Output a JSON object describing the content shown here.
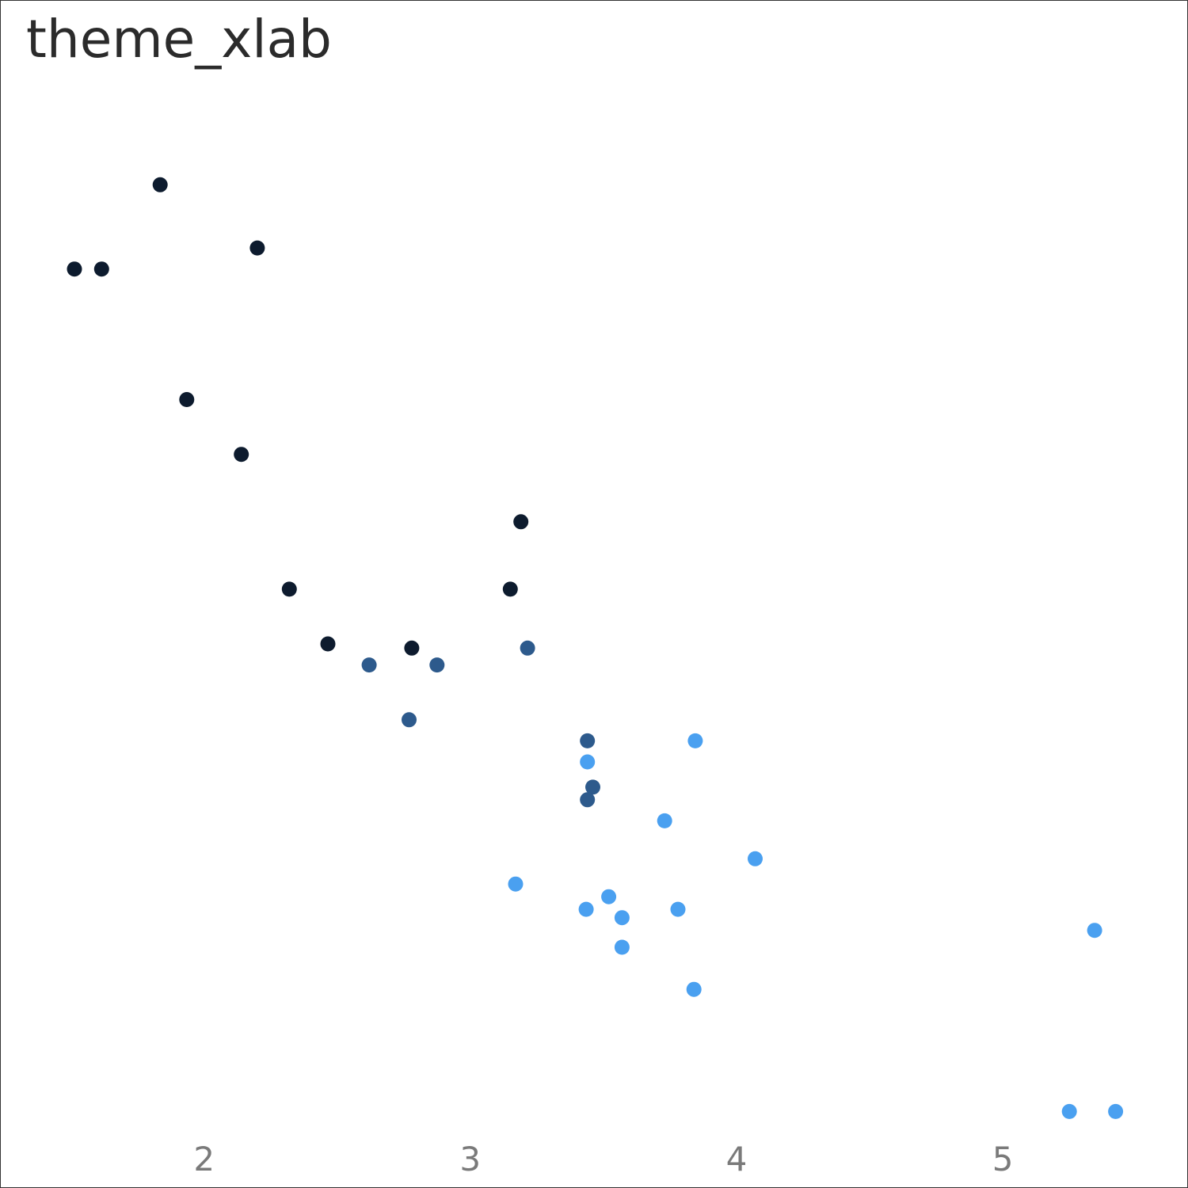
{
  "chart_data": {
    "type": "scatter",
    "title": "theme_xlab",
    "xlabel": "",
    "ylabel": "",
    "xlim": [
      1.4,
      5.55
    ],
    "ylim": [
      9.9,
      35.0
    ],
    "x_ticks": [
      2,
      3,
      4,
      5
    ],
    "y_ticks": [],
    "grid": false,
    "legend": "none",
    "colors": {
      "g1": "#0d1b2e",
      "g2": "#2d5a8c",
      "g3": "#4aa0f0"
    },
    "points": [
      {
        "x": 1.835,
        "y": 32.4,
        "g": "g1"
      },
      {
        "x": 2.2,
        "y": 30.9,
        "g": "g1"
      },
      {
        "x": 1.513,
        "y": 30.4,
        "g": "g1"
      },
      {
        "x": 1.615,
        "y": 30.4,
        "g": "g1"
      },
      {
        "x": 1.935,
        "y": 27.3,
        "g": "g1"
      },
      {
        "x": 2.14,
        "y": 26.0,
        "g": "g1"
      },
      {
        "x": 3.19,
        "y": 24.4,
        "g": "g1"
      },
      {
        "x": 2.32,
        "y": 22.8,
        "g": "g1"
      },
      {
        "x": 3.15,
        "y": 22.8,
        "g": "g1"
      },
      {
        "x": 2.465,
        "y": 21.5,
        "g": "g1"
      },
      {
        "x": 2.78,
        "y": 21.4,
        "g": "g1"
      },
      {
        "x": 2.62,
        "y": 21.0,
        "g": "g2"
      },
      {
        "x": 2.875,
        "y": 21.0,
        "g": "g2"
      },
      {
        "x": 3.215,
        "y": 21.4,
        "g": "g2"
      },
      {
        "x": 2.77,
        "y": 19.7,
        "g": "g2"
      },
      {
        "x": 3.44,
        "y": 19.2,
        "g": "g2"
      },
      {
        "x": 3.46,
        "y": 18.1,
        "g": "g2"
      },
      {
        "x": 3.44,
        "y": 17.8,
        "g": "g2"
      },
      {
        "x": 3.44,
        "y": 18.7,
        "g": "g3"
      },
      {
        "x": 3.845,
        "y": 19.2,
        "g": "g3"
      },
      {
        "x": 3.73,
        "y": 17.3,
        "g": "g3"
      },
      {
        "x": 4.07,
        "y": 16.4,
        "g": "g3"
      },
      {
        "x": 3.17,
        "y": 15.8,
        "g": "g3"
      },
      {
        "x": 3.52,
        "y": 15.5,
        "g": "g3"
      },
      {
        "x": 3.435,
        "y": 15.2,
        "g": "g3"
      },
      {
        "x": 3.78,
        "y": 15.2,
        "g": "g3"
      },
      {
        "x": 3.57,
        "y": 15.0,
        "g": "g3"
      },
      {
        "x": 3.57,
        "y": 14.3,
        "g": "g3"
      },
      {
        "x": 3.84,
        "y": 13.3,
        "g": "g3"
      },
      {
        "x": 5.345,
        "y": 14.7,
        "g": "g3"
      },
      {
        "x": 5.25,
        "y": 10.4,
        "g": "g3"
      },
      {
        "x": 5.424,
        "y": 10.4,
        "g": "g3"
      }
    ]
  }
}
